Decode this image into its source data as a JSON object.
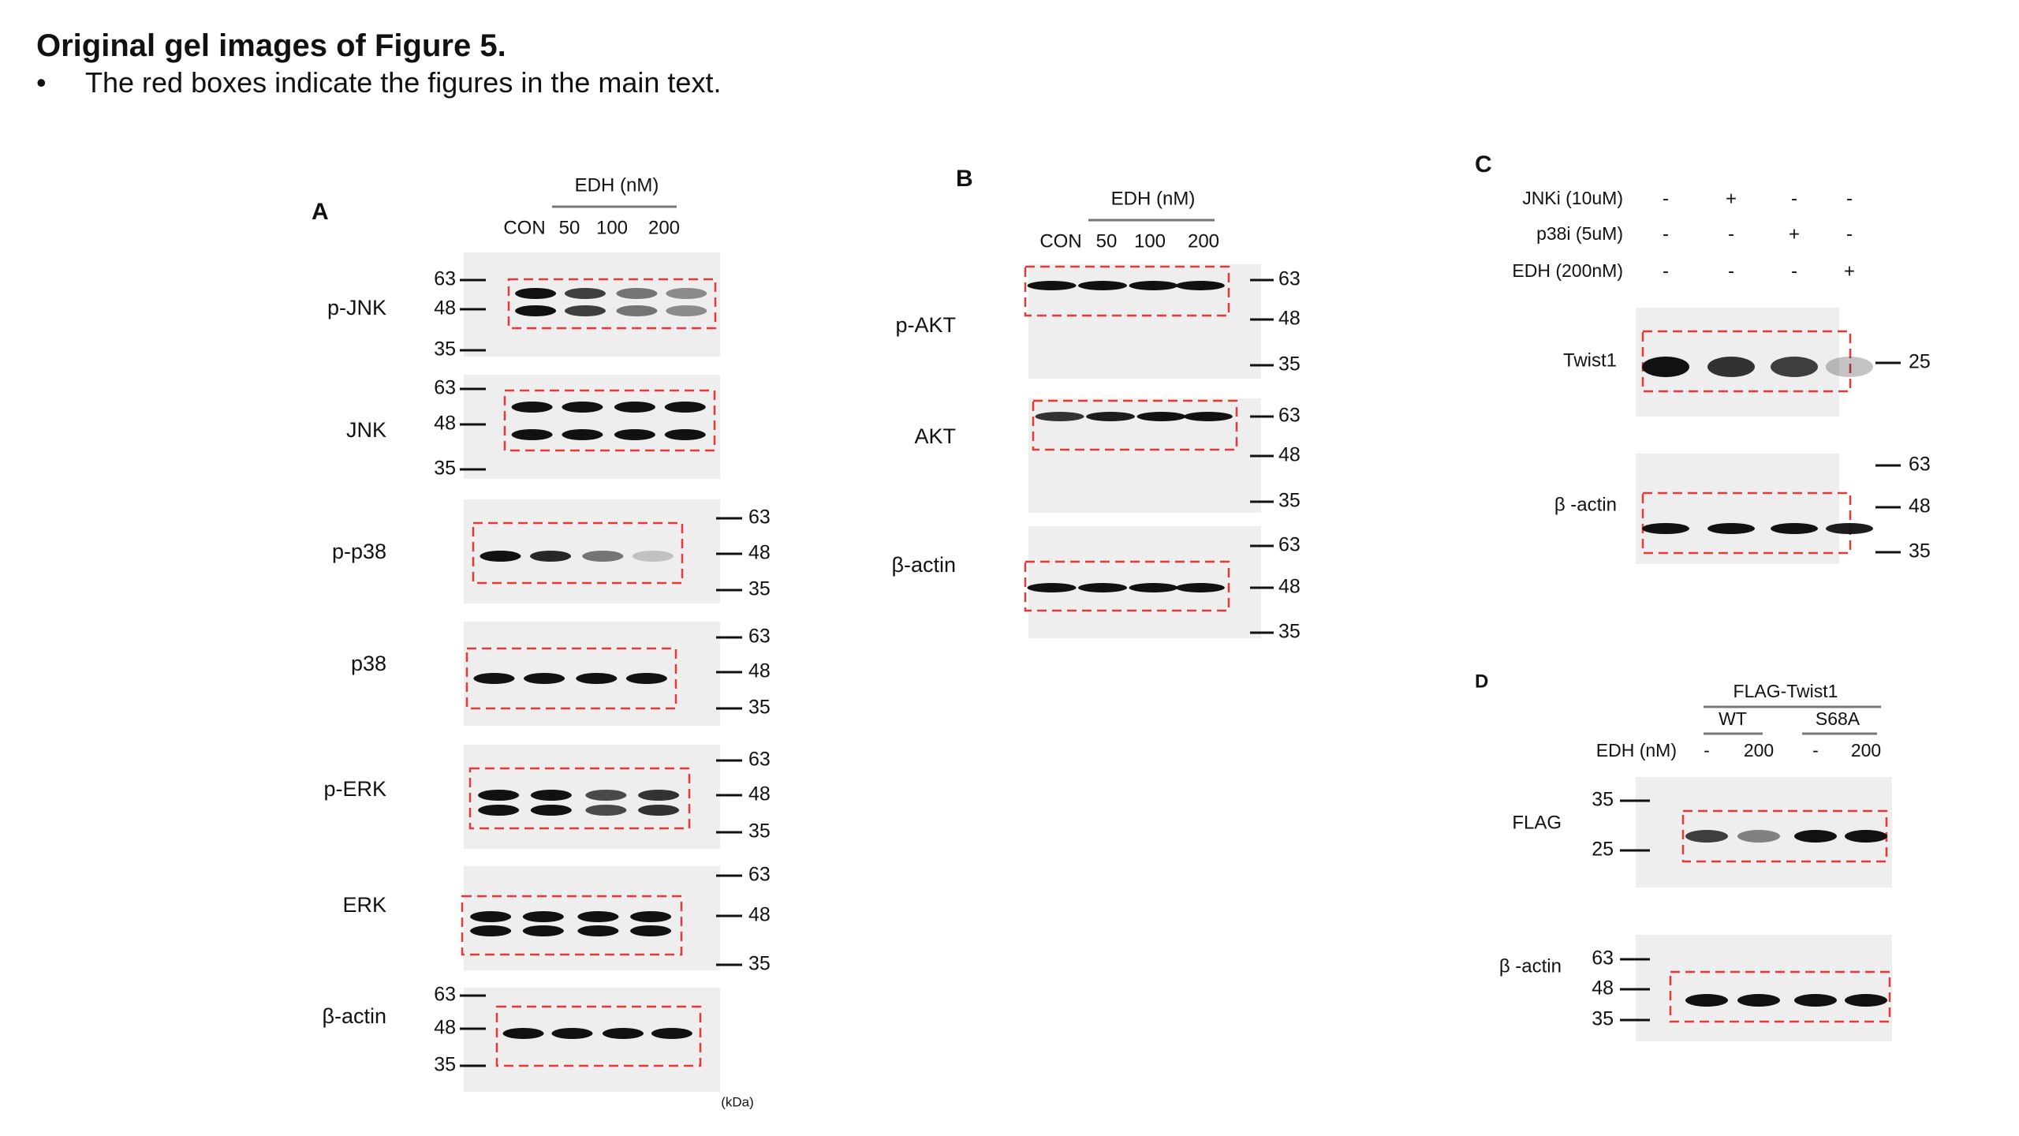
{
  "header": {
    "title": "Original gel images of Figure 5.",
    "bullet": "•",
    "note": "The red boxes indicate the figures in the main text."
  },
  "colors": {
    "annotation_box": "#e53935",
    "gel_background": "#eeeeee",
    "band": "#111111",
    "text": "#111111"
  },
  "kda_unit": "(kDa)",
  "panels": {
    "A": {
      "label": "A",
      "treatment_header": "EDH (nM)",
      "lanes": [
        "CON",
        "50",
        "100",
        "200"
      ],
      "blots": [
        {
          "name": "p-JNK",
          "markers": [
            "63",
            "48",
            "35"
          ],
          "relative_band_intensity": [
            1.0,
            0.8,
            0.55,
            0.45
          ]
        },
        {
          "name": "JNK",
          "markers": [
            "63",
            "48",
            "35"
          ],
          "relative_band_intensity": [
            1.0,
            1.0,
            1.0,
            1.0
          ]
        },
        {
          "name": "p-p38",
          "markers": [
            "63",
            "48",
            "35"
          ],
          "relative_band_intensity": [
            1.0,
            0.9,
            0.55,
            0.2
          ]
        },
        {
          "name": "p38",
          "markers": [
            "63",
            "48",
            "35"
          ],
          "relative_band_intensity": [
            1.0,
            1.0,
            1.0,
            1.0
          ]
        },
        {
          "name": "p-ERK",
          "markers": [
            "63",
            "48",
            "35"
          ],
          "relative_band_intensity": [
            1.0,
            1.0,
            0.75,
            0.85
          ]
        },
        {
          "name": "ERK",
          "markers": [
            "63",
            "48",
            "35"
          ],
          "relative_band_intensity": [
            1.0,
            1.0,
            1.0,
            1.0
          ]
        },
        {
          "name": "β-actin",
          "markers": [
            "63",
            "48",
            "35"
          ],
          "relative_band_intensity": [
            1.0,
            1.0,
            1.0,
            1.0
          ]
        }
      ]
    },
    "B": {
      "label": "B",
      "treatment_header": "EDH (nM)",
      "lanes": [
        "CON",
        "50",
        "100",
        "200"
      ],
      "blots": [
        {
          "name": "p-AKT",
          "markers": [
            "63",
            "48",
            "35"
          ],
          "relative_band_intensity": [
            1.0,
            1.0,
            1.0,
            1.0
          ]
        },
        {
          "name": "AKT",
          "markers": [
            "63",
            "48",
            "35"
          ],
          "relative_band_intensity": [
            0.85,
            0.95,
            1.0,
            1.0
          ]
        },
        {
          "name": "β-actin",
          "markers": [
            "63",
            "48",
            "35"
          ],
          "relative_band_intensity": [
            1.0,
            1.0,
            1.0,
            1.0
          ]
        }
      ]
    },
    "C": {
      "label": "C",
      "conditions": [
        {
          "name": "JNKi (10uM)",
          "values": [
            "-",
            "+",
            "-",
            "-"
          ]
        },
        {
          "name": "p38i (5uM)",
          "values": [
            "-",
            "-",
            "+",
            "-"
          ]
        },
        {
          "name": "EDH (200nM)",
          "values": [
            "-",
            "-",
            "-",
            "+"
          ]
        }
      ],
      "blots": [
        {
          "name": "Twist1",
          "markers": [
            "25"
          ],
          "relative_band_intensity": [
            1.0,
            0.85,
            0.8,
            0.25
          ]
        },
        {
          "name": "β -actin",
          "markers": [
            "63",
            "48",
            "35"
          ],
          "relative_band_intensity": [
            1.0,
            1.0,
            1.0,
            0.95
          ]
        }
      ]
    },
    "D": {
      "label": "D",
      "construct": "FLAG-Twist1",
      "groups": [
        "WT",
        "S68A"
      ],
      "treatment_label": "EDH (nM)",
      "lanes": [
        "-",
        "200",
        "-",
        "200"
      ],
      "blots": [
        {
          "name": "FLAG",
          "markers": [
            "35",
            "25"
          ],
          "relative_band_intensity": [
            0.8,
            0.5,
            1.0,
            1.0
          ]
        },
        {
          "name": "β -actin",
          "markers": [
            "63",
            "48",
            "35"
          ],
          "relative_band_intensity": [
            1.0,
            1.0,
            1.0,
            1.0
          ]
        }
      ]
    }
  }
}
